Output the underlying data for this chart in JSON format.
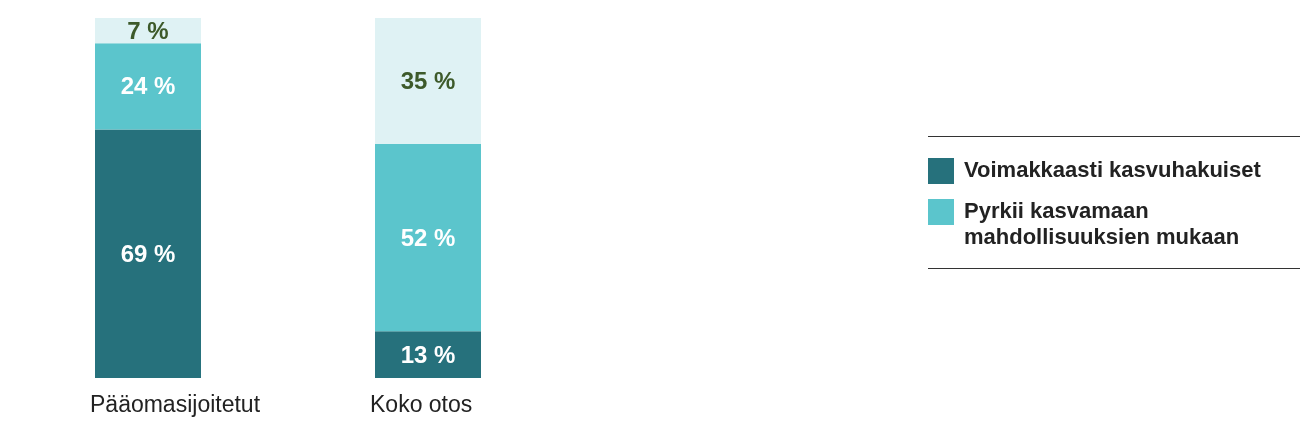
{
  "chart_data": {
    "type": "bar",
    "stacked": true,
    "categories": [
      "Pääomasijoitetut",
      "Koko otos"
    ],
    "series": [
      {
        "name": "Voimakkaasti kasvuhakuiset",
        "color": "#26717c",
        "values": [
          69,
          13
        ],
        "value_labels": [
          "69 %",
          "13 %"
        ]
      },
      {
        "name": "Pyrkii kasvamaan mahdollisuuksien mukaan",
        "color": "#5bc5cc",
        "values": [
          24,
          52
        ],
        "value_labels": [
          "24 %",
          "52 %"
        ]
      },
      {
        "color": "#dff2f4",
        "values": [
          7,
          35
        ],
        "value_labels": [
          "7 %",
          "35 %"
        ]
      }
    ],
    "legend": "right",
    "grid": false
  }
}
